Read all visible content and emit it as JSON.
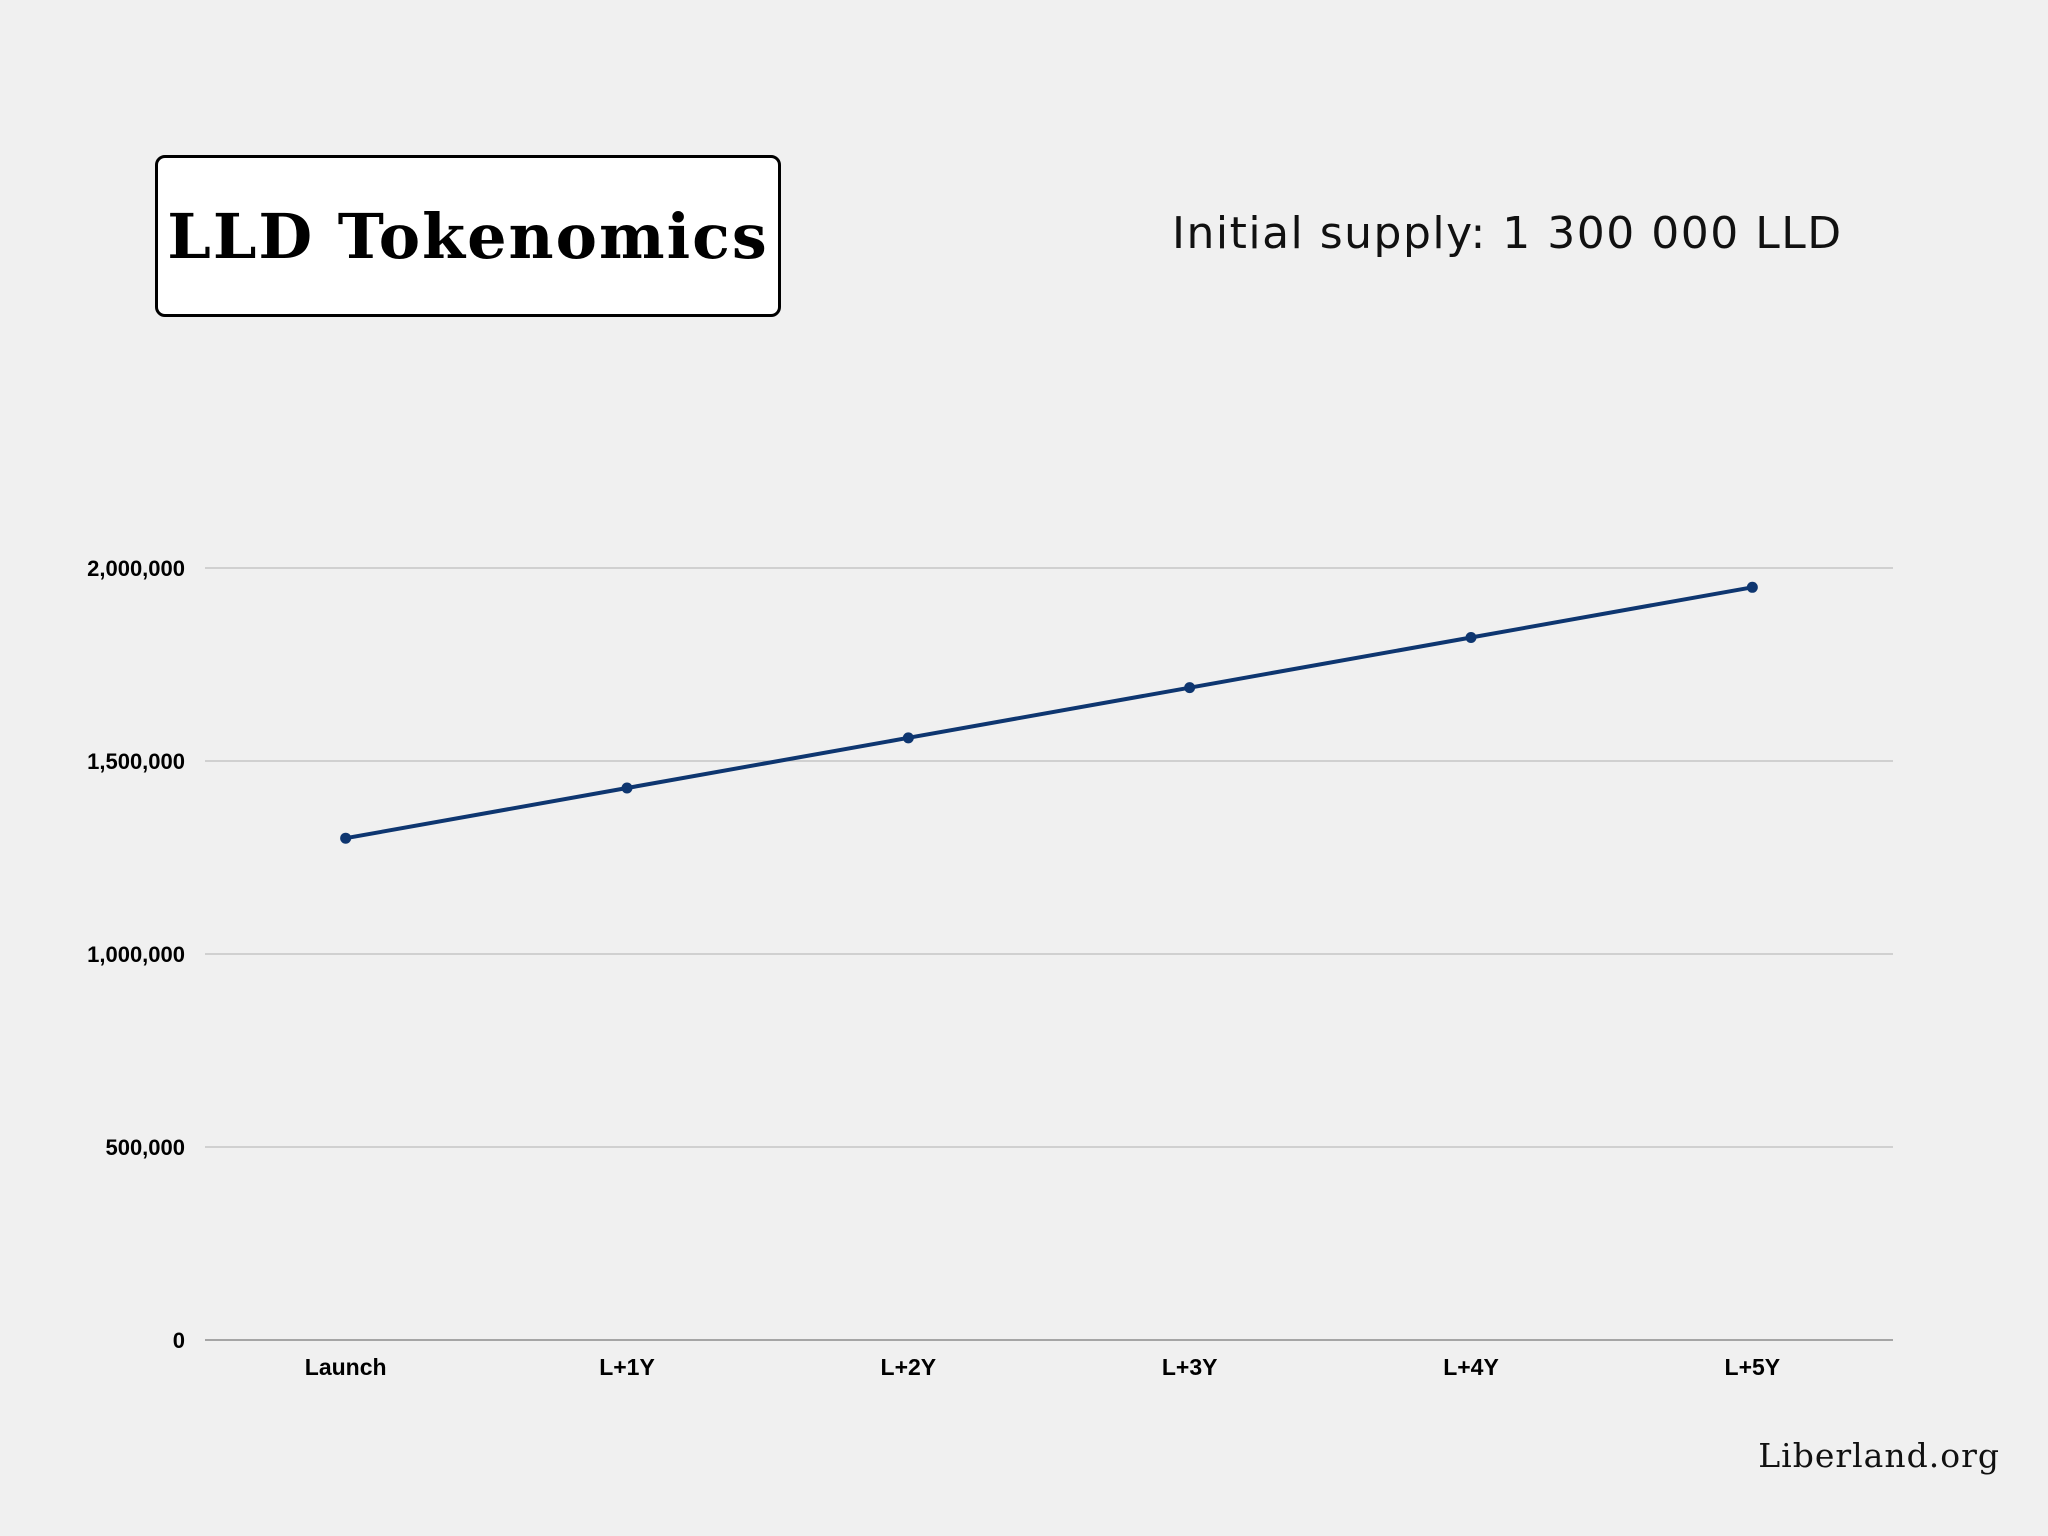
{
  "header": {
    "title": "LLD Tokenomics",
    "supply_text": "Initial supply: 1 300 000 LLD"
  },
  "footer": {
    "site": "Liberland.org"
  },
  "colors": {
    "background": "#f0f0f0",
    "line": "#0e3670",
    "grid": "#bdbdbd",
    "axis": "#8c8c8c"
  },
  "chart_data": {
    "type": "line",
    "categories": [
      "Launch",
      "L+1Y",
      "L+2Y",
      "L+3Y",
      "L+4Y",
      "L+5Y"
    ],
    "series": [
      {
        "values": [
          1300000,
          1430000,
          1560000,
          1690000,
          1820000,
          1950000
        ]
      }
    ],
    "y_ticks": [
      0,
      500000,
      1000000,
      1500000,
      2000000
    ],
    "y_tick_labels": [
      "0",
      "500,000",
      "1,000,000",
      "1,500,000",
      "2,000,000"
    ],
    "ylim": [
      0,
      2000000
    ],
    "grid": true,
    "legend": false,
    "markers": true
  }
}
